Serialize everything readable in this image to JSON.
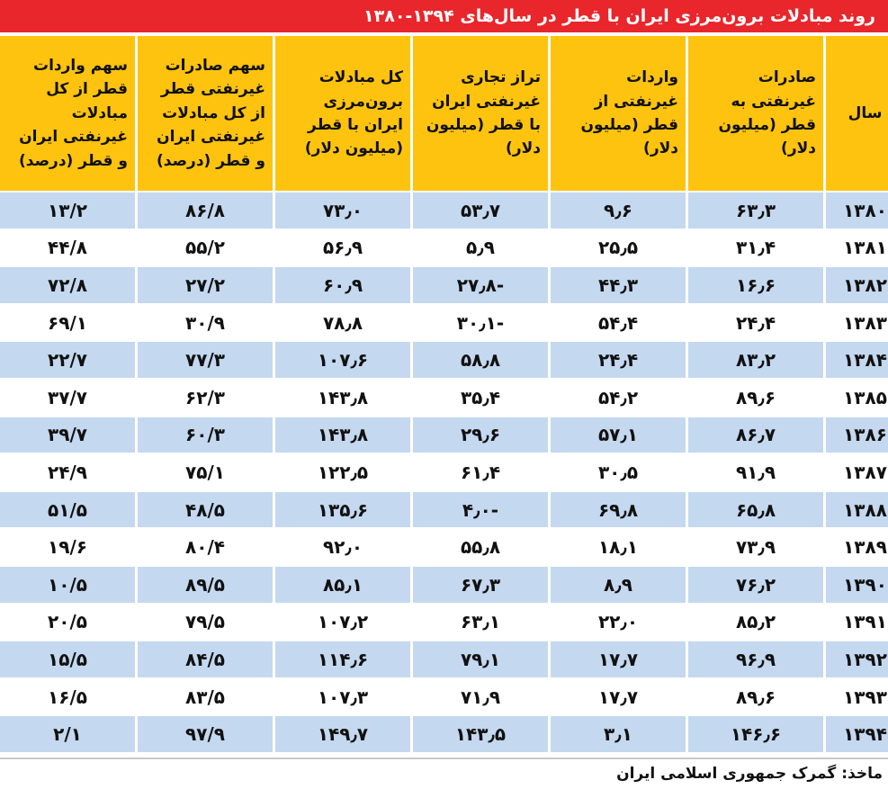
{
  "header": {
    "title": "روند مبادلات برون‌مرزی ایران با قطر در سال‌های ۱۳۹۴-۱۳۸۰"
  },
  "table": {
    "columns": [
      "سال",
      "صادرات غیرنفتی به قطر (میلیون دلار)",
      "واردات غیرنفتی از قطر (میلیون دلار)",
      "تراز تجاری غیرنفتی ایران با قطر (میلیون دلار)",
      "کل مبادلات برون‌مرزی ایران با قطر (میلیون دلار)",
      "سهم صادرات غیرنفتی قطر از کل مبادلات غیرنفتی ایران و قطر (درصد)",
      "سهم واردات قطر از کل مبادلات غیرنفتی ایران و قطر (درصد)"
    ],
    "rows": [
      [
        "۱۳۸۰",
        "۶۳٫۳",
        "۹٫۶",
        "۵۳٫۷",
        "۷۳٫۰",
        "۸۶/۸",
        "۱۳/۲"
      ],
      [
        "۱۳۸۱",
        "۳۱٫۴",
        "۲۵٫۵",
        "۵٫۹",
        "۵۶٫۹",
        "۵۵/۲",
        "۴۴/۸"
      ],
      [
        "۱۳۸۲",
        "۱۶٫۶",
        "۴۴٫۳",
        "-۲۷٫۸",
        "۶۰٫۹",
        "۲۷/۲",
        "۷۲/۸"
      ],
      [
        "۱۳۸۳",
        "۲۴٫۴",
        "۵۴٫۴",
        "-۳۰٫۱",
        "۷۸٫۸",
        "۳۰/۹",
        "۶۹/۱"
      ],
      [
        "۱۳۸۴",
        "۸۳٫۲",
        "۲۴٫۴",
        "۵۸٫۸",
        "۱۰۷٫۶",
        "۷۷/۳",
        "۲۲/۷"
      ],
      [
        "۱۳۸۵",
        "۸۹٫۶",
        "۵۴٫۲",
        "۳۵٫۴",
        "۱۴۳٫۸",
        "۶۲/۳",
        "۳۷/۷"
      ],
      [
        "۱۳۸۶",
        "۸۶٫۷",
        "۵۷٫۱",
        "۲۹٫۶",
        "۱۴۳٫۸",
        "۶۰/۳",
        "۳۹/۷"
      ],
      [
        "۱۳۸۷",
        "۹۱٫۹",
        "۳۰٫۵",
        "۶۱٫۴",
        "۱۲۲٫۵",
        "۷۵/۱",
        "۲۴/۹"
      ],
      [
        "۱۳۸۸",
        "۶۵٫۸",
        "۶۹٫۸",
        "-۴٫۰",
        "۱۳۵٫۶",
        "۴۸/۵",
        "۵۱/۵"
      ],
      [
        "۱۳۸۹",
        "۷۳٫۹",
        "۱۸٫۱",
        "۵۵٫۸",
        "۹۲٫۰",
        "۸۰/۴",
        "۱۹/۶"
      ],
      [
        "۱۳۹۰",
        "۷۶٫۲",
        "۸٫۹",
        "۶۷٫۳",
        "۸۵٫۱",
        "۸۹/۵",
        "۱۰/۵"
      ],
      [
        "۱۳۹۱",
        "۸۵٫۲",
        "۲۲٫۰",
        "۶۳٫۱",
        "۱۰۷٫۲",
        "۷۹/۵",
        "۲۰/۵"
      ],
      [
        "۱۳۹۲",
        "۹۶٫۹",
        "۱۷٫۷",
        "۷۹٫۱",
        "۱۱۴٫۶",
        "۸۴/۵",
        "۱۵/۵"
      ],
      [
        "۱۳۹۳",
        "۸۹٫۶",
        "۱۷٫۷",
        "۷۱٫۹",
        "۱۰۷٫۳",
        "۸۳/۵",
        "۱۶/۵"
      ],
      [
        "۱۳۹۴",
        "۱۴۶٫۶",
        "۳٫۱",
        "۱۴۳٫۵",
        "۱۴۹٫۷",
        "۹۷/۹",
        "۲/۱"
      ]
    ]
  },
  "footer": {
    "source": "ماخذ: گمرک جمهوری اسلامی ایران"
  }
}
